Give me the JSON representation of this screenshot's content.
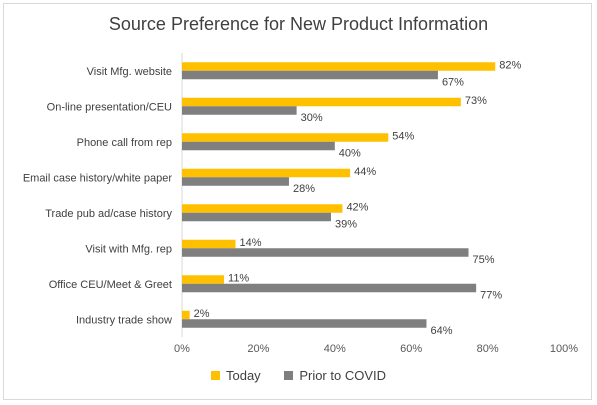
{
  "chart_data": {
    "type": "bar",
    "orientation": "horizontal",
    "title": "Source Preference for New Product Information",
    "categories": [
      "Visit Mfg. website",
      "On-line presentation/CEU",
      "Phone call from rep",
      "Email case history/white paper",
      "Trade pub ad/case history",
      "Visit with Mfg. rep",
      "Office CEU/Meet & Greet",
      "Industry trade show"
    ],
    "series": [
      {
        "name": "Today",
        "color": "#ffc000",
        "values": [
          82,
          73,
          54,
          44,
          42,
          14,
          11,
          2
        ]
      },
      {
        "name": "Prior to COVID",
        "color": "#7f7f7f",
        "values": [
          67,
          30,
          40,
          28,
          39,
          75,
          77,
          64
        ]
      }
    ],
    "value_suffix": "%",
    "xlim": [
      0,
      100
    ],
    "xticks": [
      "0%",
      "20%",
      "40%",
      "60%",
      "80%",
      "100%"
    ],
    "grid": false,
    "legend_position": "bottom"
  }
}
